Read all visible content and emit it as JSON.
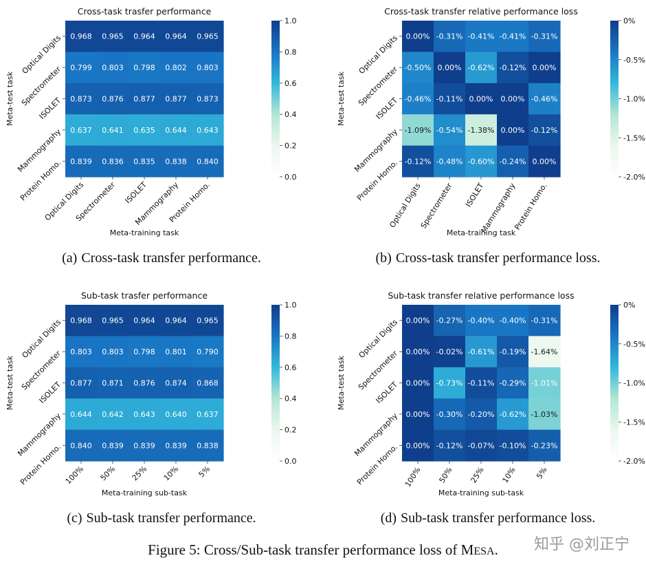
{
  "chart_data": [
    {
      "type": "heatmap",
      "title": "Cross-task trasfer performance",
      "xlabel": "Meta-training task",
      "ylabel": "Meta-test task",
      "x_categories": [
        "Optical Digits",
        "Spectrometer",
        "ISOLET",
        "Mammography",
        "Protein Homo."
      ],
      "y_categories": [
        "Optical Digits",
        "Spectrometer",
        "ISOLET",
        "Mammography",
        "Protein Homo."
      ],
      "values": [
        [
          0.968,
          0.965,
          0.964,
          0.964,
          0.965
        ],
        [
          0.799,
          0.803,
          0.798,
          0.802,
          0.803
        ],
        [
          0.873,
          0.876,
          0.877,
          0.877,
          0.873
        ],
        [
          0.637,
          0.641,
          0.635,
          0.644,
          0.643
        ],
        [
          0.839,
          0.836,
          0.835,
          0.838,
          0.84
        ]
      ],
      "cell_labels": [
        [
          "0.968",
          "0.965",
          "0.964",
          "0.964",
          "0.965"
        ],
        [
          "0.799",
          "0.803",
          "0.798",
          "0.802",
          "0.803"
        ],
        [
          "0.873",
          "0.876",
          "0.877",
          "0.877",
          "0.873"
        ],
        [
          "0.637",
          "0.641",
          "0.635",
          "0.644",
          "0.643"
        ],
        [
          "0.839",
          "0.836",
          "0.835",
          "0.838",
          "0.840"
        ]
      ],
      "vmin": 0.0,
      "vmax": 1.0,
      "colorbar_ticks": [
        1.0,
        0.8,
        0.6,
        0.4,
        0.2,
        0.0
      ],
      "colorbar_tick_labels": [
        "1.0",
        "0.8",
        "0.6",
        "0.4",
        "0.2",
        "0.0"
      ],
      "colormap": [
        "#ffffff",
        "#eaf7ee",
        "#b3e6d3",
        "#33b8db",
        "#1976c4",
        "#0f3e8c"
      ]
    },
    {
      "type": "heatmap",
      "title": "Cross-task transfer relative performance loss",
      "xlabel": "Meta-training task",
      "ylabel": "Meta-test task",
      "x_categories": [
        "Optical Digits",
        "Spectrometer",
        "ISOLET",
        "Mammography",
        "Protein Homo."
      ],
      "y_categories": [
        "Optical Digits",
        "Spectrometer",
        "ISOLET",
        "Mammography",
        "Protein Homo."
      ],
      "values": [
        [
          0.0,
          -0.31,
          -0.41,
          -0.41,
          -0.31
        ],
        [
          -0.5,
          0.0,
          -0.62,
          -0.12,
          0.0
        ],
        [
          -0.46,
          -0.11,
          0.0,
          0.0,
          -0.46
        ],
        [
          -1.09,
          -0.54,
          -1.38,
          0.0,
          -0.12
        ],
        [
          -0.12,
          -0.48,
          -0.6,
          -0.24,
          0.0
        ]
      ],
      "cell_labels": [
        [
          "0.00%",
          "-0.31%",
          "-0.41%",
          "-0.41%",
          "-0.31%"
        ],
        [
          "-0.50%",
          "0.00%",
          "-0.62%",
          "-0.12%",
          "0.00%"
        ],
        [
          "-0.46%",
          "-0.11%",
          "0.00%",
          "0.00%",
          "-0.46%"
        ],
        [
          "-1.09%",
          "-0.54%",
          "-1.38%",
          "0.00%",
          "-0.12%"
        ],
        [
          "-0.12%",
          "-0.48%",
          "-0.60%",
          "-0.24%",
          "0.00%"
        ]
      ],
      "vmin": -2.0,
      "vmax": 0.0,
      "colorbar_ticks": [
        0.0,
        -0.5,
        -1.0,
        -1.5,
        -2.0
      ],
      "colorbar_tick_labels": [
        "0%",
        "-0.5%",
        "-1.0%",
        "-1.5%",
        "-2.0%"
      ],
      "colormap": [
        "#ffffff",
        "#eaf7ee",
        "#b3e6d3",
        "#33b8db",
        "#1976c4",
        "#0f3e8c"
      ]
    },
    {
      "type": "heatmap",
      "title": "Sub-task trasfer performance",
      "xlabel": "Meta-training sub-task",
      "ylabel": "Meta-test task",
      "x_categories": [
        "100%",
        "50%",
        "25%",
        "10%",
        "5%"
      ],
      "y_categories": [
        "Optical Digits",
        "Spectrometer",
        "ISOLET",
        "Mammography",
        "Protein Homo."
      ],
      "values": [
        [
          0.968,
          0.965,
          0.964,
          0.964,
          0.965
        ],
        [
          0.803,
          0.803,
          0.798,
          0.801,
          0.79
        ],
        [
          0.877,
          0.871,
          0.876,
          0.874,
          0.868
        ],
        [
          0.644,
          0.642,
          0.643,
          0.64,
          0.637
        ],
        [
          0.84,
          0.839,
          0.839,
          0.839,
          0.838
        ]
      ],
      "cell_labels": [
        [
          "0.968",
          "0.965",
          "0.964",
          "0.964",
          "0.965"
        ],
        [
          "0.803",
          "0.803",
          "0.798",
          "0.801",
          "0.790"
        ],
        [
          "0.877",
          "0.871",
          "0.876",
          "0.874",
          "0.868"
        ],
        [
          "0.644",
          "0.642",
          "0.643",
          "0.640",
          "0.637"
        ],
        [
          "0.840",
          "0.839",
          "0.839",
          "0.839",
          "0.838"
        ]
      ],
      "vmin": 0.0,
      "vmax": 1.0,
      "colorbar_ticks": [
        1.0,
        0.8,
        0.6,
        0.4,
        0.2,
        0.0
      ],
      "colorbar_tick_labels": [
        "1.0",
        "0.8",
        "0.6",
        "0.4",
        "0.2",
        "0.0"
      ],
      "colormap": [
        "#ffffff",
        "#eaf7ee",
        "#b3e6d3",
        "#33b8db",
        "#1976c4",
        "#0f3e8c"
      ]
    },
    {
      "type": "heatmap",
      "title": "Sub-task transfer relative performance loss",
      "xlabel": "Meta-training sub-task",
      "ylabel": "Meta-test task",
      "x_categories": [
        "100%",
        "50%",
        "25%",
        "10%",
        "5%"
      ],
      "y_categories": [
        "Optical Digits",
        "Spectrometer",
        "ISOLET",
        "Mammography",
        "Protein Homo."
      ],
      "values": [
        [
          0.0,
          -0.27,
          -0.4,
          -0.4,
          -0.31
        ],
        [
          0.0,
          -0.02,
          -0.61,
          -0.19,
          -1.64
        ],
        [
          0.0,
          -0.73,
          -0.11,
          -0.29,
          -1.01
        ],
        [
          0.0,
          -0.3,
          -0.2,
          -0.62,
          -1.03
        ],
        [
          0.0,
          -0.12,
          -0.07,
          -0.1,
          -0.23
        ]
      ],
      "cell_labels": [
        [
          "0.00%",
          "-0.27%",
          "-0.40%",
          "-0.40%",
          "-0.31%"
        ],
        [
          "0.00%",
          "-0.02%",
          "-0.61%",
          "-0.19%",
          "-1.64%"
        ],
        [
          "0.00%",
          "-0.73%",
          "-0.11%",
          "-0.29%",
          "-1.01%"
        ],
        [
          "0.00%",
          "-0.30%",
          "-0.20%",
          "-0.62%",
          "-1.03%"
        ],
        [
          "0.00%",
          "-0.12%",
          "-0.07%",
          "-0.10%",
          "-0.23%"
        ]
      ],
      "vmin": -2.0,
      "vmax": 0.0,
      "colorbar_ticks": [
        0.0,
        -0.5,
        -1.0,
        -1.5,
        -2.0
      ],
      "colorbar_tick_labels": [
        "0%",
        "-0.5%",
        "-1.0%",
        "-1.5%",
        "-2.0%"
      ],
      "colormap": [
        "#ffffff",
        "#eaf7ee",
        "#b3e6d3",
        "#33b8db",
        "#1976c4",
        "#0f3e8c"
      ]
    }
  ],
  "captions": [
    {
      "label": "(a)",
      "text": "Cross-task transfer performance."
    },
    {
      "label": "(b)",
      "text": "Cross-task transfer performance loss."
    },
    {
      "label": "(c)",
      "text": "Sub-task transfer performance."
    },
    {
      "label": "(d)",
      "text": "Sub-task transfer performance loss."
    }
  ],
  "figure_caption": {
    "prefix": "Figure 5: Cross/Sub-task transfer performance loss of ",
    "method_first": "M",
    "method_rest": "ESA",
    "suffix": "."
  },
  "watermark": "知乎 @刘正宁"
}
